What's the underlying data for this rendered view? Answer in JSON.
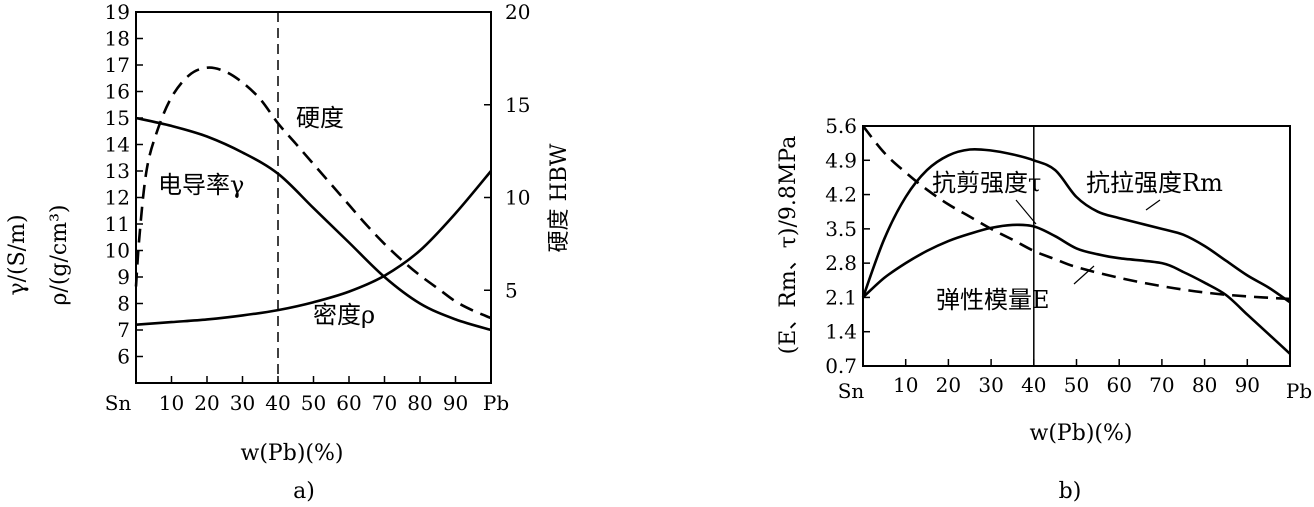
{
  "chart_data": [
    {
      "type": "line",
      "panel_label": "a)",
      "xlabel": "w(Pb)(%)",
      "x_start_label": "Sn",
      "x_end_label": "Pb",
      "x_ticks": [
        10,
        20,
        30,
        40,
        50,
        60,
        70,
        80,
        90
      ],
      "xlim": [
        0,
        100
      ],
      "left_axis": {
        "label_gamma": "γ/(S/m)",
        "label_rho": "ρ/(g/cm³)",
        "ylim": [
          5,
          19
        ],
        "ticks": [
          6,
          7,
          8,
          9,
          10,
          11,
          12,
          13,
          14,
          15,
          16,
          17,
          18,
          19
        ]
      },
      "right_axis": {
        "label": "硬度  HBW",
        "ylim": [
          0,
          20
        ],
        "ticks": [
          5,
          10,
          15,
          20
        ]
      },
      "vline_x": 40,
      "series": [
        {
          "name": "硬度",
          "axis": "right",
          "style": "dashed",
          "x": [
            0,
            1,
            3,
            6,
            10,
            15,
            20,
            25,
            30,
            35,
            40,
            45,
            50,
            55,
            60,
            65,
            70,
            75,
            80,
            85,
            90,
            95,
            100
          ],
          "values": [
            5.2,
            8.0,
            11.5,
            13.6,
            15.4,
            16.6,
            17.0,
            16.8,
            16.2,
            15.3,
            14.0,
            12.9,
            11.8,
            10.7,
            9.6,
            8.5,
            7.5,
            6.6,
            5.8,
            5.1,
            4.4,
            3.9,
            3.5
          ]
        },
        {
          "name": "电导率γ",
          "axis": "left",
          "style": "solid",
          "x": [
            0,
            10,
            20,
            30,
            40,
            50,
            60,
            70,
            80,
            90,
            100
          ],
          "values": [
            15.0,
            14.7,
            14.3,
            13.7,
            12.9,
            11.6,
            10.3,
            9.0,
            8.0,
            7.4,
            7.0
          ]
        },
        {
          "name": "密度ρ",
          "axis": "left",
          "style": "solid",
          "x": [
            0,
            10,
            20,
            30,
            40,
            50,
            60,
            70,
            80,
            90,
            100
          ],
          "values": [
            7.2,
            7.3,
            7.4,
            7.55,
            7.75,
            8.05,
            8.45,
            9.05,
            10.0,
            11.4,
            13.0
          ]
        }
      ],
      "annotations": [
        "硬度",
        "电导率γ",
        "密度ρ"
      ]
    },
    {
      "type": "line",
      "panel_label": "b)",
      "xlabel": "w(Pb)(%)",
      "ylabel": "(E、Rm、τ)/9.8MPa",
      "x_start_label": "Sn",
      "x_end_label": "Pb",
      "x_ticks": [
        10,
        20,
        30,
        40,
        50,
        60,
        70,
        80,
        90
      ],
      "xlim": [
        0,
        100
      ],
      "ylim": [
        0.7,
        5.6
      ],
      "y_ticks": [
        "0.7",
        "1.4",
        "2.1",
        "2.8",
        "3.5",
        "4.2",
        "4.9",
        "5.6"
      ],
      "vline_x": 40,
      "series": [
        {
          "name": "抗拉强度Rm",
          "style": "solid",
          "x": [
            0,
            5,
            10,
            15,
            20,
            25,
            30,
            35,
            40,
            45,
            50,
            55,
            60,
            70,
            75,
            80,
            85,
            90,
            95,
            100
          ],
          "values": [
            2.1,
            3.3,
            4.15,
            4.7,
            5.0,
            5.12,
            5.1,
            5.02,
            4.9,
            4.7,
            4.15,
            3.85,
            3.72,
            3.5,
            3.38,
            3.15,
            2.85,
            2.55,
            2.3,
            2.0
          ]
        },
        {
          "name": "抗剪强度τ",
          "style": "solid",
          "x": [
            0,
            5,
            10,
            15,
            20,
            25,
            30,
            35,
            40,
            45,
            50,
            55,
            60,
            70,
            75,
            80,
            85,
            90,
            95,
            100
          ],
          "values": [
            2.1,
            2.5,
            2.8,
            3.05,
            3.25,
            3.4,
            3.52,
            3.58,
            3.55,
            3.35,
            3.1,
            2.98,
            2.9,
            2.8,
            2.62,
            2.4,
            2.15,
            1.75,
            1.35,
            0.95
          ]
        },
        {
          "name": "弹性模量E",
          "style": "dashed",
          "x": [
            0,
            5,
            10,
            15,
            20,
            25,
            30,
            35,
            40,
            45,
            50,
            60,
            70,
            80,
            90,
            100
          ],
          "values": [
            5.6,
            5.05,
            4.65,
            4.3,
            4.0,
            3.75,
            3.5,
            3.28,
            3.05,
            2.88,
            2.72,
            2.5,
            2.33,
            2.2,
            2.12,
            2.07
          ]
        }
      ],
      "annotations": [
        "抗剪强度τ",
        "抗拉强度Rm",
        "弹性模量E"
      ]
    }
  ]
}
